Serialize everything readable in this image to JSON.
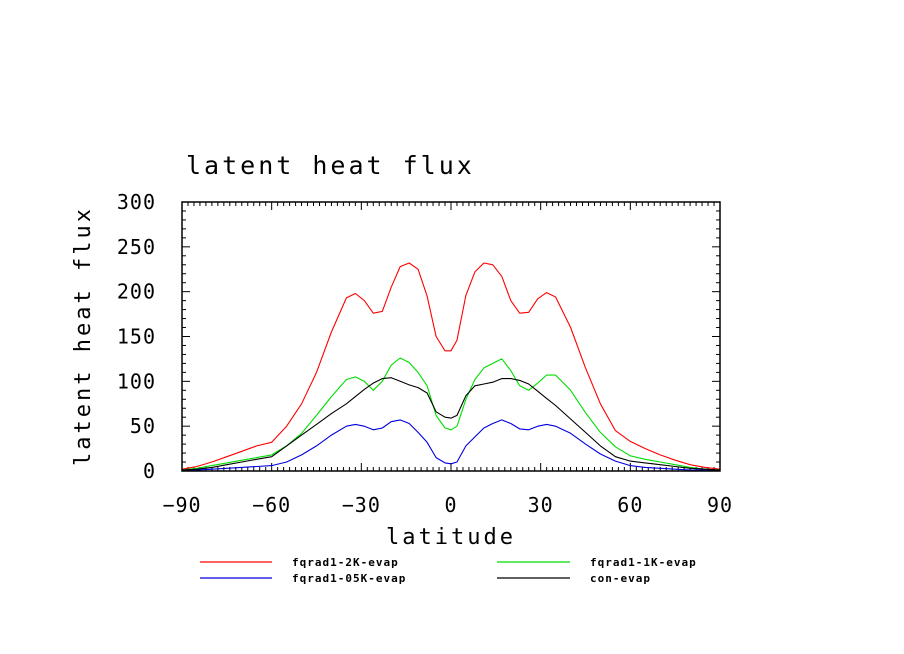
{
  "chart_data": {
    "type": "line",
    "title": "latent heat flux",
    "xlabel": "latitude",
    "ylabel": "latent heat flux",
    "xlim": [
      -90,
      90
    ],
    "ylim": [
      0,
      300
    ],
    "xticks": [
      -90,
      -60,
      -30,
      0,
      30,
      60,
      90
    ],
    "xtick_labels": [
      "−90",
      "−60",
      "−30",
      "0",
      "30",
      "60",
      "90"
    ],
    "yticks": [
      0,
      50,
      100,
      150,
      200,
      250,
      300
    ],
    "ytick_labels": [
      "0",
      "50",
      "100",
      "150",
      "200",
      "250",
      "300"
    ],
    "grid": false,
    "legend_position": "bottom",
    "x": [
      -90,
      -85,
      -80,
      -75,
      -70,
      -65,
      -60,
      -55,
      -50,
      -45,
      -40,
      -35,
      -32,
      -29,
      -26,
      -23,
      -20,
      -17,
      -14,
      -11,
      -8,
      -5,
      -2,
      0,
      2,
      5,
      8,
      11,
      14,
      17,
      20,
      23,
      26,
      29,
      32,
      35,
      40,
      45,
      50,
      55,
      60,
      65,
      70,
      75,
      80,
      85,
      90
    ],
    "series": [
      {
        "name": "fqrad1-2K-evap",
        "color": "#ff0000",
        "values": [
          2,
          5,
          10,
          16,
          22,
          28,
          32,
          50,
          75,
          110,
          155,
          193,
          198,
          190,
          176,
          178,
          205,
          228,
          232,
          225,
          195,
          150,
          134,
          134,
          146,
          196,
          222,
          232,
          230,
          217,
          190,
          176,
          177,
          192,
          199,
          194,
          160,
          115,
          75,
          45,
          33,
          25,
          18,
          12,
          7,
          4,
          2
        ]
      },
      {
        "name": "fqrad1-1K-evap",
        "color": "#00dd00",
        "values": [
          1,
          3,
          6,
          9,
          12,
          15,
          18,
          28,
          42,
          62,
          83,
          102,
          105,
          100,
          90,
          100,
          118,
          126,
          121,
          110,
          95,
          62,
          48,
          46,
          50,
          80,
          102,
          115,
          120,
          125,
          112,
          95,
          90,
          98,
          107,
          107,
          90,
          65,
          43,
          27,
          17,
          13,
          10,
          7,
          4,
          2,
          1
        ]
      },
      {
        "name": "fqrad1-05K-evap",
        "color": "#0000dd",
        "values": [
          0,
          1,
          2,
          3,
          4,
          5,
          6,
          10,
          18,
          28,
          40,
          50,
          52,
          50,
          46,
          48,
          55,
          57,
          53,
          43,
          32,
          15,
          9,
          8,
          10,
          28,
          38,
          48,
          53,
          57,
          53,
          47,
          46,
          50,
          52,
          50,
          42,
          30,
          19,
          11,
          6,
          4,
          3,
          2,
          1,
          1,
          0
        ]
      },
      {
        "name": "con-evap",
        "color": "#000000",
        "values": [
          1,
          2,
          4,
          7,
          10,
          13,
          16,
          28,
          40,
          52,
          64,
          75,
          83,
          91,
          98,
          103,
          104,
          100,
          96,
          93,
          87,
          66,
          60,
          59,
          62,
          84,
          95,
          97,
          99,
          103,
          103,
          101,
          97,
          89,
          81,
          73,
          58,
          43,
          28,
          16,
          11,
          9,
          7,
          5,
          3,
          2,
          1
        ]
      }
    ]
  }
}
